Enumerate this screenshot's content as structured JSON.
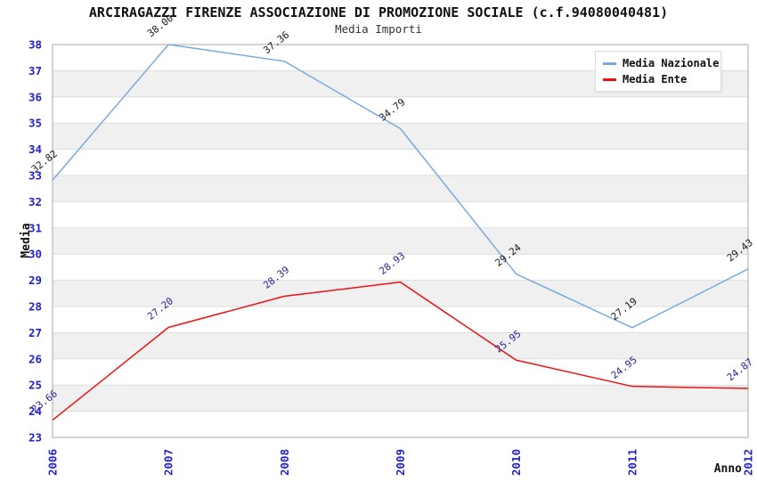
{
  "title": "ARCIRAGAZZI FIRENZE ASSOCIAZIONE DI PROMOZIONE SOCIALE (c.f.94080040481)",
  "subtitle": "Media Importi",
  "axes": {
    "y_label": "Media",
    "x_label": "Anno",
    "y_ticks": [
      38,
      37,
      36,
      35,
      34,
      33,
      32,
      31,
      30,
      29,
      28,
      27,
      26,
      25,
      24,
      23
    ],
    "x_ticks": [
      "2006",
      "2007",
      "2008",
      "2009",
      "2010",
      "2011",
      "2012"
    ],
    "tick_color": "#2222CC"
  },
  "legend": {
    "items": [
      {
        "label": "Media Nazionale",
        "color": "#7AA9DC"
      },
      {
        "label": "Media Ente",
        "color": "#EE1111"
      }
    ]
  },
  "colors": {
    "band_gray": "#F0F0F0",
    "band_white": "#FFFFFF",
    "gridline": "#DDDDDD",
    "plot_border": "#AAAAAA"
  },
  "chart_data": {
    "type": "line",
    "title": "ARCIRAGAZZI FIRENZE ASSOCIAZIONE DI PROMOZIONE SOCIALE (c.f.94080040481)",
    "subtitle": "Media Importi",
    "xlabel": "Anno",
    "ylabel": "Media",
    "ylim": [
      23,
      38
    ],
    "grid": "horizontal-bands",
    "legend_position": "top-right",
    "categories": [
      "2006",
      "2007",
      "2008",
      "2009",
      "2010",
      "2011",
      "2012"
    ],
    "series": [
      {
        "name": "Media Nazionale",
        "color": "#7AA9DC",
        "label_color": "#1A1A1A",
        "values": [
          32.82,
          38.0,
          37.36,
          34.79,
          29.24,
          27.19,
          29.43
        ],
        "labels": [
          "32.82",
          "38.00",
          "37.36",
          "34.79",
          "29.24",
          "27.19",
          "29.43"
        ]
      },
      {
        "name": "Media Ente",
        "color": "#EE1111",
        "label_color": "#262699",
        "values": [
          23.66,
          27.2,
          28.39,
          28.93,
          25.95,
          24.95,
          24.87
        ],
        "labels": [
          "23.66",
          "27.20",
          "28.39",
          "28.93",
          "25.95",
          "24.95",
          "24.87"
        ]
      }
    ]
  }
}
